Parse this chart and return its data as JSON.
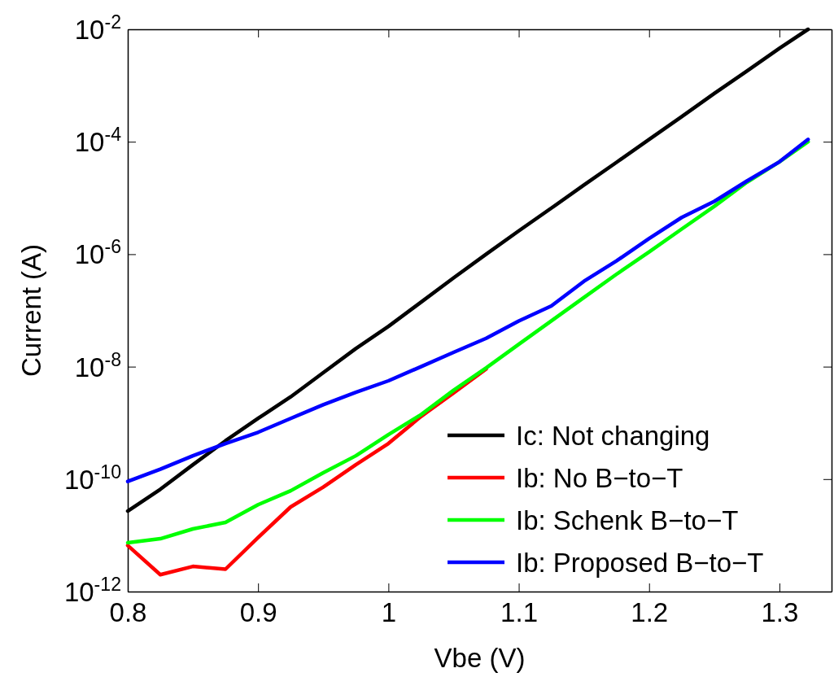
{
  "chart_data": {
    "type": "line",
    "xlabel": "Vbe (V)",
    "ylabel": "Current (A)",
    "log": "y",
    "legend": "bottom right",
    "grid": false,
    "line_style": "solid",
    "marker": "none",
    "xlim": [
      0.8,
      1.34
    ],
    "xticks": [
      0.8,
      0.9,
      {
        "value": 1.0,
        "label": "1"
      },
      1.1,
      1.2,
      1.3
    ],
    "ylim": [
      1e-12,
      0.01
    ],
    "yticks": [
      {
        "value": 1e-12,
        "label": "10$^{-12}$"
      },
      {
        "value": 1e-10,
        "label": "10$^{-10}$"
      },
      {
        "value": 1e-08,
        "label": "10$^{-8}$"
      },
      {
        "value": 1e-06,
        "label": "10$^{-6}$"
      },
      {
        "value": 0.0001,
        "label": "10$^{-4}$"
      },
      {
        "value": 0.01,
        "label": "10$^{-2}$"
      }
    ],
    "x": [
      0.8,
      0.825,
      0.85,
      0.875,
      0.9,
      0.925,
      0.95,
      0.975,
      1.0,
      1.025,
      1.05,
      1.075,
      1.1,
      1.125,
      1.15,
      1.175,
      1.2,
      1.225,
      1.25,
      1.275,
      1.3,
      1.322
    ],
    "series": [
      {
        "name": "Ic: Not changing",
        "color": "#000000",
        "values": [
          2.7e-11,
          6.6e-11,
          1.8e-10,
          4.8e-10,
          1.2e-09,
          2.9e-09,
          7.8e-09,
          2.1e-08,
          5.2e-08,
          1.4e-07,
          3.8e-07,
          1e-06,
          2.6e-06,
          6.6e-06,
          1.7e-05,
          4.3e-05,
          0.00011,
          0.00028,
          0.00072,
          0.0018,
          0.0046,
          0.01
        ]
      },
      {
        "name": "Ib: No B−to−T",
        "color": "#ff0000",
        "values": [
          6.6e-12,
          2e-12,
          2.8e-12,
          2.5e-12,
          9.1e-12,
          3.2e-11,
          7.2e-11,
          1.8e-10,
          4.3e-10,
          1.3e-09,
          3.4e-09,
          9.1e-09,
          null,
          null,
          null,
          null,
          null,
          null,
          null,
          null,
          null,
          null
        ]
      },
      {
        "name": "Ib: Schenk B−to−T",
        "color": "#00ff00",
        "values": [
          7.4e-12,
          8.7e-12,
          1.3e-11,
          1.7e-11,
          3.5e-11,
          6.2e-11,
          1.3e-10,
          2.6e-10,
          6.2e-10,
          1.4e-09,
          3.8e-09,
          9.5e-09,
          2.5e-08,
          6.5e-08,
          1.7e-07,
          4.4e-07,
          1.1e-06,
          2.8e-06,
          7.1e-06,
          1.9e-05,
          4.4e-05,
          0.0001
        ]
      },
      {
        "name": "Ib: Proposed B−to−T",
        "color": "#0000ff",
        "values": [
          9.1e-11,
          1.5e-10,
          2.6e-10,
          4.3e-10,
          6.8e-10,
          1.2e-09,
          2.1e-09,
          3.5e-09,
          5.6e-09,
          1e-08,
          1.8e-08,
          3.2e-08,
          6.5e-08,
          1.2e-07,
          3.3e-07,
          7.6e-07,
          1.9e-06,
          4.5e-06,
          8.7e-06,
          2e-05,
          4.4e-05,
          0.00011
        ]
      }
    ]
  }
}
